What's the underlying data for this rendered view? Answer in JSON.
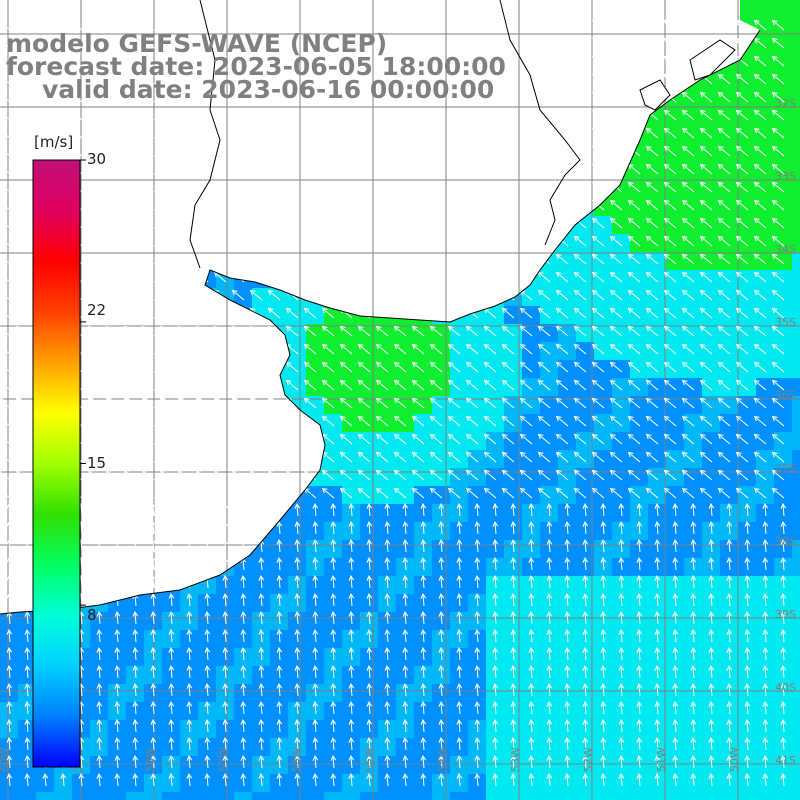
{
  "title": {
    "line1": "modelo GEFS-WAVE (NCEP)",
    "line2": "forecast date: 2023-06-05 18:00:00",
    "line3": "valid date: 2023-06-16 00:00:00"
  },
  "colorbar": {
    "unit": "[m/s]",
    "min": 0,
    "max": 30,
    "tick_labels": [
      "30",
      "22",
      "15",
      "8"
    ],
    "tick_values": [
      30,
      22,
      15,
      8
    ],
    "colors": [
      "#0000ff",
      "#0080ff",
      "#00d0ff",
      "#00ffd8",
      "#00ff60",
      "#30e000",
      "#a0ff00",
      "#ffff00",
      "#ffa000",
      "#ff4000",
      "#ff0000",
      "#e00060",
      "#c0107a"
    ]
  },
  "map": {
    "field": "wind speed and direction",
    "grid": true,
    "bottom_labels": [
      "60W",
      "59W",
      "58W",
      "57W",
      "56W",
      "55W",
      "54W",
      "53W",
      "52W",
      "51W",
      "50W"
    ],
    "right_labels": [
      "32S",
      "33S",
      "34S",
      "35S",
      "36S",
      "37S",
      "38S",
      "39S",
      "40S",
      "41S"
    ],
    "land_color": "#ffffff",
    "coast_color": "#000000",
    "grid_color": "#808080",
    "arrow_color": "#ffffff",
    "green_color": "#10ee30",
    "cyan_color": "#00e8f0",
    "blue_color": "#0090ff"
  }
}
